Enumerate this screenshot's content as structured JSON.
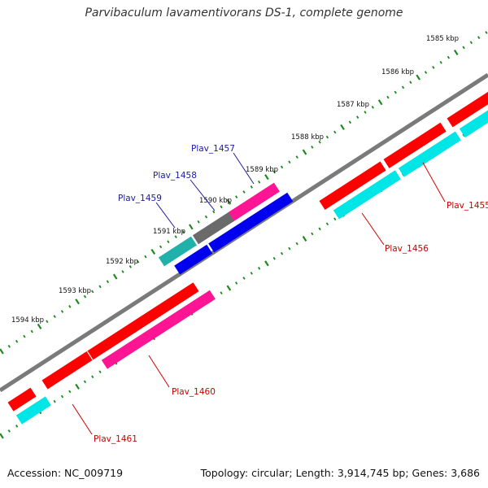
{
  "title": "Parvibaculum lavamentivorans DS-1, complete genome",
  "footer": {
    "accession": "Accession: NC_009719",
    "summary": "Topology: circular; Length: 3,914,745 bp; Genes: 3,686"
  },
  "colors": {
    "backbone": "#7a7a7a",
    "tick": "#1a8a1a",
    "label_forward": "#1a1aa0",
    "label_reverse": "#cc0000",
    "red": "#ff0000",
    "cyan": "#00e5e5",
    "blue": "#0000ee",
    "magenta": "#ff1493",
    "gray": "#6a6a6a",
    "teal": "#20b2aa"
  },
  "scale_labels": [
    "1585 kbp",
    "1586 kbp",
    "1587 kbp",
    "1588 kbp",
    "1589 kbp",
    "1590 kbp",
    "1591 kbp",
    "1592 kbp",
    "1593 kbp",
    "1594 kbp"
  ],
  "gene_labels": [
    {
      "name": "Plav_1457",
      "strand": "forward"
    },
    {
      "name": "Plav_1458",
      "strand": "forward"
    },
    {
      "name": "Plav_1459",
      "strand": "forward"
    },
    {
      "name": "Plav_1455",
      "strand": "reverse"
    },
    {
      "name": "Plav_1456",
      "strand": "reverse"
    },
    {
      "name": "Plav_1460",
      "strand": "reverse"
    },
    {
      "name": "Plav_1461",
      "strand": "reverse"
    }
  ]
}
